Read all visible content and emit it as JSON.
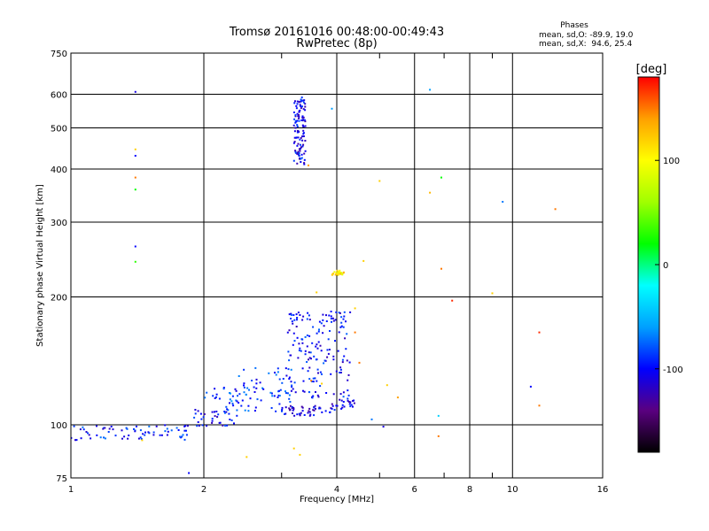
{
  "chart_data": {
    "type": "scatter",
    "title": "Tromsø 20161016 00:48:00-00:49:43",
    "subtitle": "RwPretec (8p)",
    "xlabel": "Frequency [MHz]",
    "ylabel": "Stationary phase Virtual Height [km]",
    "x_scale": "log",
    "y_scale": "log",
    "xlim": [
      1,
      16
    ],
    "ylim": [
      75,
      750
    ],
    "x_ticks": [
      1,
      2,
      4,
      6,
      8,
      10,
      16
    ],
    "x_minor_ticks": [
      3,
      5,
      7,
      9
    ],
    "y_ticks": [
      75,
      100,
      200,
      300,
      400,
      500,
      600,
      750
    ],
    "grid": true,
    "stats": {
      "header": "Phases",
      "line_o": "mean, sd,O: -89.9, 19.0",
      "line_x": "mean, sd,X:  94.6, 25.4"
    },
    "colorbar": {
      "label": "[deg]",
      "range": [
        -180,
        180
      ],
      "ticks": [
        100,
        0,
        -100
      ],
      "colormap": [
        "#000000",
        "#5a0080",
        "#0000ff",
        "#00a0ff",
        "#00ffff",
        "#00ff00",
        "#a0ff00",
        "#ffff00",
        "#ffa000",
        "#ff0000"
      ]
    },
    "traces": [
      {
        "x_range": [
          1.0,
          1.9
        ],
        "y_center": 96,
        "y_spread": 4,
        "count": 70,
        "phase": -95
      },
      {
        "x_range": [
          1.9,
          2.4
        ],
        "y_center": 104,
        "y_spread": 5,
        "count": 35,
        "phase": -100
      },
      {
        "x_range": [
          2.0,
          3.0
        ],
        "y_center": 115,
        "y_spread": 8,
        "count": 50,
        "phase": -85
      },
      {
        "x_range": [
          2.4,
          3.2
        ],
        "y_center": 125,
        "y_spread": 12,
        "count": 45,
        "phase": -90
      },
      {
        "x_range": [
          3.0,
          4.0
        ],
        "y_center": 108,
        "y_spread": 3,
        "count": 50,
        "phase": -110
      },
      {
        "x_range": [
          3.9,
          4.4
        ],
        "y_center": 112,
        "y_spread": 3,
        "count": 20,
        "phase": -105
      },
      {
        "x_range": [
          3.1,
          4.3
        ],
        "y_center": 150,
        "y_spread": 35,
        "count": 160,
        "phase": -100
      },
      {
        "x_range": [
          3.2,
          3.4
        ],
        "y_center": 500,
        "y_spread": 90,
        "count": 110,
        "phase": -105
      },
      {
        "x_range": [
          3.9,
          4.15
        ],
        "y_center": 228,
        "y_spread": 3,
        "count": 25,
        "phase": 110
      }
    ],
    "points": [
      {
        "x": 1.4,
        "y": 608,
        "phase": -110
      },
      {
        "x": 1.4,
        "y": 445,
        "phase": 120
      },
      {
        "x": 1.4,
        "y": 430,
        "phase": -100
      },
      {
        "x": 1.4,
        "y": 382,
        "phase": 150
      },
      {
        "x": 1.4,
        "y": 358,
        "phase": 20
      },
      {
        "x": 1.4,
        "y": 263,
        "phase": -100
      },
      {
        "x": 1.4,
        "y": 242,
        "phase": 30
      },
      {
        "x": 6.5,
        "y": 615,
        "phase": -60
      },
      {
        "x": 3.9,
        "y": 555,
        "phase": -60
      },
      {
        "x": 5.0,
        "y": 375,
        "phase": 120
      },
      {
        "x": 6.5,
        "y": 352,
        "phase": 130
      },
      {
        "x": 6.9,
        "y": 382,
        "phase": 20
      },
      {
        "x": 9.5,
        "y": 335,
        "phase": -70
      },
      {
        "x": 12.5,
        "y": 322,
        "phase": 150
      },
      {
        "x": 6.9,
        "y": 233,
        "phase": 150
      },
      {
        "x": 7.3,
        "y": 196,
        "phase": 170
      },
      {
        "x": 9.0,
        "y": 204,
        "phase": 120
      },
      {
        "x": 11.5,
        "y": 165,
        "phase": 170
      },
      {
        "x": 11.0,
        "y": 123,
        "phase": -100
      },
      {
        "x": 11.5,
        "y": 111,
        "phase": 150
      },
      {
        "x": 6.8,
        "y": 105,
        "phase": -40
      },
      {
        "x": 6.8,
        "y": 94,
        "phase": 150
      },
      {
        "x": 5.1,
        "y": 99,
        "phase": -110
      },
      {
        "x": 4.8,
        "y": 103,
        "phase": -70
      },
      {
        "x": 5.5,
        "y": 116,
        "phase": 140
      },
      {
        "x": 5.2,
        "y": 124,
        "phase": 120
      },
      {
        "x": 4.6,
        "y": 243,
        "phase": 120
      },
      {
        "x": 4.4,
        "y": 188,
        "phase": 120
      },
      {
        "x": 4.4,
        "y": 165,
        "phase": 150
      },
      {
        "x": 4.5,
        "y": 140,
        "phase": 150
      },
      {
        "x": 2.5,
        "y": 84,
        "phase": 120
      },
      {
        "x": 3.3,
        "y": 85,
        "phase": 120
      },
      {
        "x": 3.2,
        "y": 88,
        "phase": 120
      },
      {
        "x": 1.85,
        "y": 77,
        "phase": -100
      },
      {
        "x": 1.45,
        "y": 92,
        "phase": 120
      },
      {
        "x": 3.45,
        "y": 408,
        "phase": 140
      },
      {
        "x": 3.6,
        "y": 205,
        "phase": 120
      },
      {
        "x": 3.5,
        "y": 127,
        "phase": 150
      },
      {
        "x": 3.7,
        "y": 125,
        "phase": 120
      }
    ]
  }
}
